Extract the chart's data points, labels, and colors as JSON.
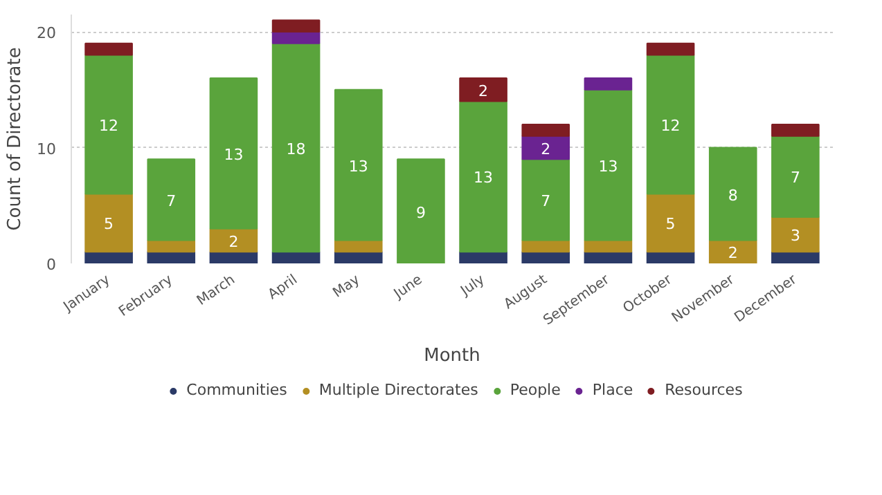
{
  "chart_data": {
    "type": "bar",
    "stacked": true,
    "xlabel": "Month",
    "ylabel": "Count of Directorate",
    "categories": [
      "January",
      "February",
      "March",
      "April",
      "May",
      "June",
      "July",
      "August",
      "September",
      "October",
      "November",
      "December"
    ],
    "series": [
      {
        "name": "Communities",
        "color": "#2b3a67",
        "values": [
          1,
          1,
          1,
          1,
          1,
          null,
          1,
          1,
          1,
          1,
          null,
          1
        ],
        "value_labels": [
          null,
          null,
          null,
          null,
          null,
          null,
          null,
          null,
          null,
          null,
          null,
          null
        ]
      },
      {
        "name": "Multiple Directorates",
        "color": "#b38f23",
        "values": [
          5,
          1,
          2,
          null,
          1,
          null,
          null,
          1,
          1,
          5,
          2,
          3
        ],
        "value_labels": [
          "5",
          null,
          "2",
          null,
          null,
          null,
          null,
          null,
          null,
          "5",
          "2",
          "3"
        ]
      },
      {
        "name": "People",
        "color": "#5aa43c",
        "values": [
          12,
          7,
          13,
          18,
          13,
          9,
          13,
          7,
          13,
          12,
          8,
          7
        ],
        "value_labels": [
          "12",
          "7",
          "13",
          "18",
          "13",
          "9",
          "13",
          "7",
          "13",
          "12",
          "8",
          "7"
        ]
      },
      {
        "name": "Place",
        "color": "#6a2391",
        "values": [
          null,
          null,
          null,
          1,
          null,
          null,
          null,
          2,
          1,
          null,
          null,
          null
        ],
        "value_labels": [
          null,
          null,
          null,
          null,
          null,
          null,
          null,
          "2",
          null,
          null,
          null,
          null
        ]
      },
      {
        "name": "Resources",
        "color": "#7f1d22",
        "values": [
          1,
          null,
          null,
          1,
          null,
          null,
          2,
          1,
          null,
          1,
          null,
          1
        ],
        "value_labels": [
          null,
          null,
          null,
          null,
          null,
          null,
          "2",
          null,
          null,
          null,
          null,
          null
        ]
      }
    ],
    "ylim": [
      0,
      21.5
    ],
    "yticks": [
      0,
      10,
      20
    ],
    "grid": "y",
    "legend": "bottom"
  }
}
